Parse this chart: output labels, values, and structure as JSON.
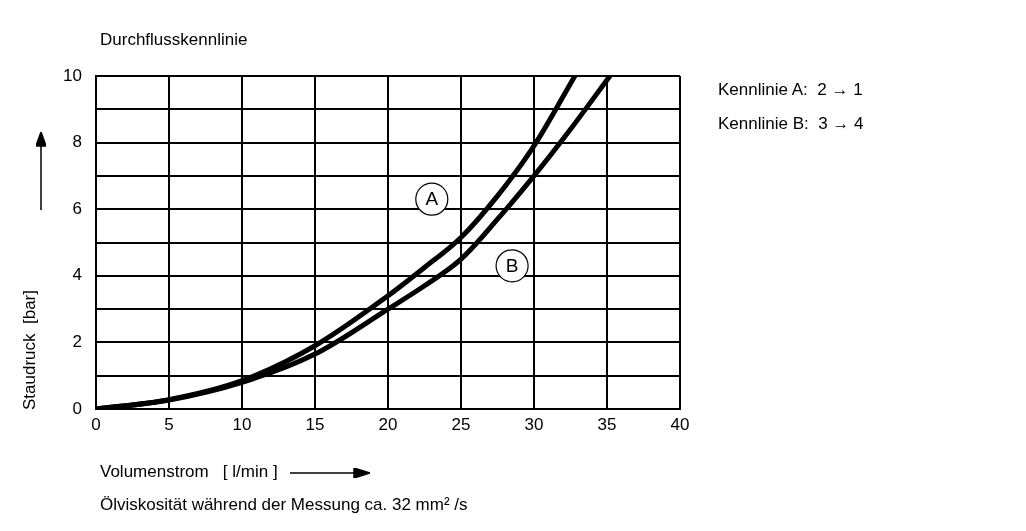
{
  "chart_data": {
    "type": "line",
    "title": "Durchflusskennlinie",
    "xlabel": "Volumenstrom   [ l/min ]",
    "ylabel": "Staudruck  [bar]",
    "series": [
      {
        "color": "#000000",
        "x": [
          0,
          5,
          10,
          15,
          20,
          22.5,
          25,
          27.5,
          30,
          32.8
        ],
        "values": [
          0,
          0.28,
          0.85,
          1.9,
          3.4,
          4.25,
          5.15,
          6.4,
          7.9,
          10
        ]
      },
      {
        "color": "#000000",
        "x": [
          0,
          5,
          10,
          15,
          20,
          22.5,
          25,
          27.5,
          30,
          32.5,
          35.2
        ],
        "values": [
          0,
          0.27,
          0.8,
          1.65,
          3.0,
          3.7,
          4.5,
          5.7,
          7.0,
          8.4,
          10
        ]
      }
    ],
    "xlim": [
      0,
      40
    ],
    "xticks": [
      0,
      5,
      10,
      15,
      20,
      25,
      30,
      35,
      40
    ],
    "ylim": [
      0,
      10
    ],
    "yticks": [
      0,
      {
        "value": 1,
        "label": null
      },
      2,
      {
        "value": 3,
        "label": null
      },
      4,
      {
        "value": 5,
        "label": null
      },
      6,
      {
        "value": 7,
        "label": null
      },
      8,
      {
        "value": 9,
        "label": null
      },
      10
    ],
    "grid": true,
    "legend": false,
    "marker": "none",
    "line_style": "solid",
    "annotations": [
      {
        "text": "A",
        "x": 23,
        "y": 6.3
      },
      {
        "text": "B",
        "x": 28.5,
        "y": 4.3
      },
      "Kennlinie A:  2 → 1",
      "Kennlinie B:  3 → 4",
      "Ölviskosität während der Messung ca. 32 mm² /s"
    ]
  }
}
